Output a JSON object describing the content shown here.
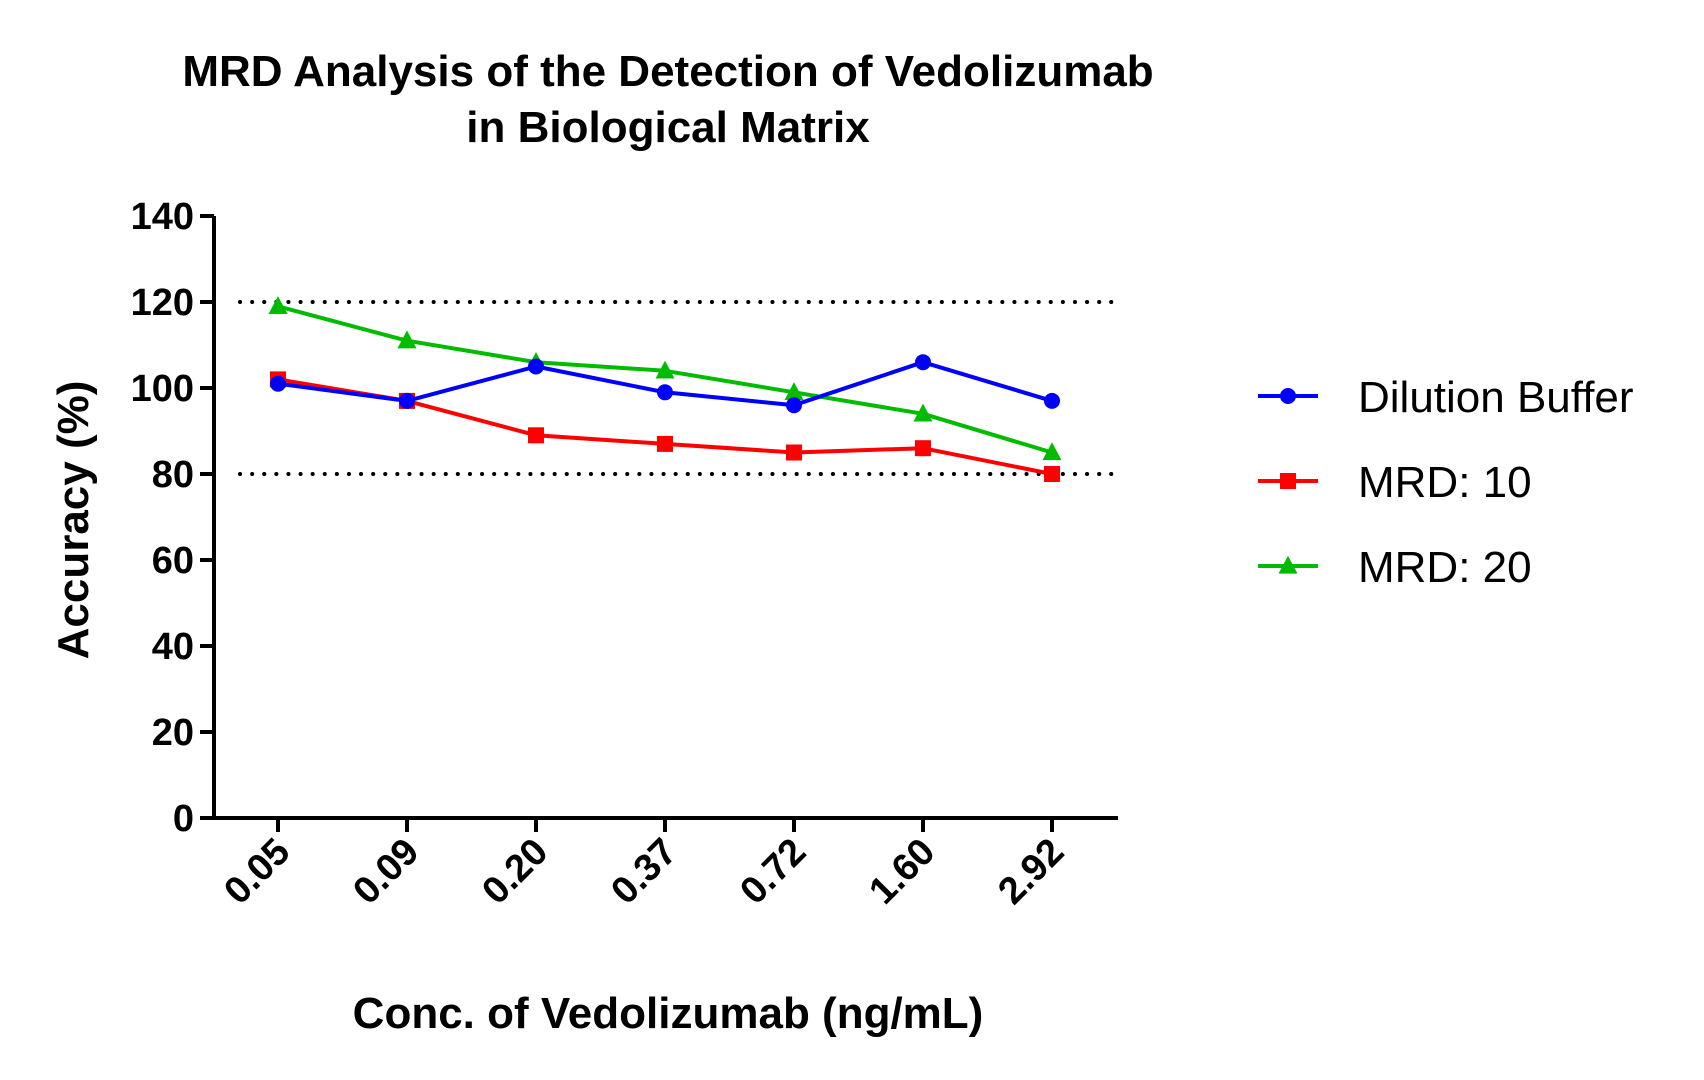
{
  "chart_data": {
    "type": "line",
    "title": [
      "MRD Analysis of the Detection of Vedolizumab",
      "in Biological Matrix"
    ],
    "xlabel": "Conc. of Vedolizumab (ng/mL)",
    "ylabel": "Accuracy (%)",
    "categories": [
      "0.05",
      "0.09",
      "0.20",
      "0.37",
      "0.72",
      "1.60",
      "2.92"
    ],
    "ylim": [
      0,
      140
    ],
    "yticks": [
      0,
      20,
      40,
      60,
      80,
      100,
      120,
      140
    ],
    "reference_lines": [
      120,
      80
    ],
    "grid": false,
    "legend_position": "right",
    "series": [
      {
        "name": "Dilution Buffer",
        "color": "#0000ff",
        "marker": "circle",
        "values": [
          101,
          97,
          105,
          99,
          96,
          106,
          97
        ]
      },
      {
        "name": "MRD: 10",
        "color": "#ff0000",
        "marker": "square",
        "values": [
          102,
          97,
          89,
          87,
          85,
          86,
          80
        ]
      },
      {
        "name": "MRD: 20",
        "color": "#00bb00",
        "marker": "triangle",
        "values": [
          119,
          111,
          106,
          104,
          99,
          94,
          85
        ]
      }
    ]
  }
}
